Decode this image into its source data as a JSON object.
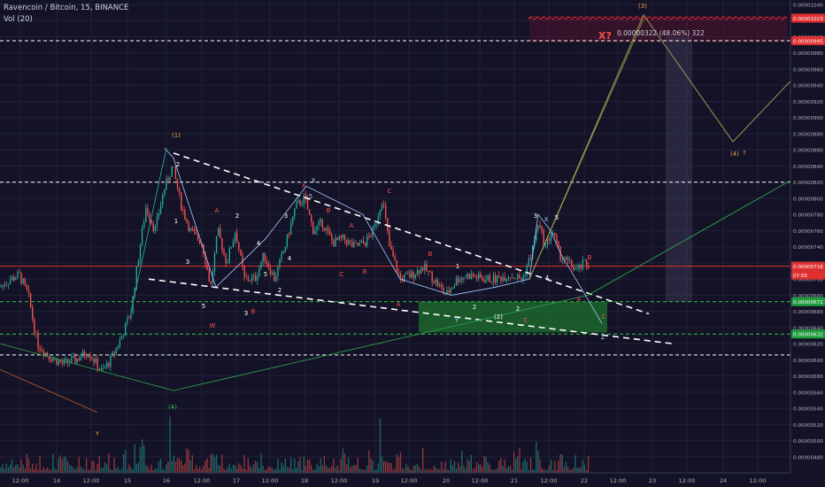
{
  "header": {
    "symbol_line": "Ravencoin / Bitcoin, 15, BINANCE",
    "volume_label": "Vol (20)"
  },
  "colors": {
    "background": "#131226",
    "grid": "#22213a",
    "candle_up": "#26a69a",
    "candle_down": "#ef5350",
    "price_line": "#e03030",
    "white_dashed": "#ffffff",
    "green_zone": "#1b6b2c",
    "red_zone": "#5a1330",
    "fib_line": "#9a9a52",
    "wave_orange": "#f0a050",
    "wave_red": "#ff5050",
    "wave_white": "#ffffff",
    "wave_blue": "#a8c8ff",
    "teal_line": "#26a69a",
    "green_line": "#2e9b4c",
    "brown_line": "#a0522d"
  },
  "chart_data": {
    "type": "candlestick",
    "x_axis_ticks": [
      "12:00",
      "14",
      "12:00",
      "15",
      "16",
      "12:00",
      "17",
      "12:00",
      "18",
      "12:00",
      "19",
      "12:00",
      "20",
      "12:00",
      "21",
      "12:00",
      "22",
      "12:00",
      "23",
      "12:00",
      "24",
      "12:00"
    ],
    "y_axis_ticks": [
      "0.00001040",
      "0.00001020",
      "0.00001000",
      "0.00000980",
      "0.00000960",
      "0.00000940",
      "0.00000920",
      "0.00000900",
      "0.00000880",
      "0.00000860",
      "0.00000840",
      "0.00000820",
      "0.00000800",
      "0.00000780",
      "0.00000760",
      "0.00000740",
      "0.00000720",
      "0.00000700",
      "0.00000680",
      "0.00000660",
      "0.00000640",
      "0.00000620",
      "0.00000600",
      "0.00000580",
      "0.00000560",
      "0.00000540",
      "0.00000520",
      "0.00000500",
      "0.00000480"
    ],
    "ylim": [
      4.7e-06,
      1.04e-05
    ],
    "price_badges": [
      {
        "value": "0.00001023",
        "color": "#e03030"
      },
      {
        "value": "0.00000995",
        "color": "#e03030"
      },
      {
        "value": "0.00000716",
        "color": "#e03030"
      },
      {
        "value": "07:55",
        "color": "#e03030"
      },
      {
        "value": "0.00000672",
        "color": "#1f9a3c"
      },
      {
        "value": "0.00000632",
        "color": "#1f9a3c"
      }
    ],
    "measure_label": "0.00000322 (48.06%) 322",
    "x_question_label": "X?",
    "wave_labels": [
      {
        "text": "(1)",
        "color": "#f0a050"
      },
      {
        "text": "2",
        "color": "#ffffff"
      },
      {
        "text": "(3)",
        "color": "#f0a050"
      },
      {
        "text": "(4)",
        "color": "#f0a050"
      },
      {
        "text": "?",
        "color": "#f0a050"
      },
      {
        "text": "(4)",
        "color": "#2ecc40"
      },
      {
        "text": "Y",
        "color": "#f0a050"
      },
      {
        "text": "A",
        "color": "#ff5050"
      },
      {
        "text": "2",
        "color": "#ffffff"
      },
      {
        "text": "4",
        "color": "#ffffff"
      },
      {
        "text": "1",
        "color": "#ffffff"
      },
      {
        "text": "3",
        "color": "#ffffff"
      },
      {
        "text": "5",
        "color": "#ffffff"
      },
      {
        "text": "W",
        "color": "#ff5050"
      },
      {
        "text": "3",
        "color": "#ffffff"
      },
      {
        "text": "5",
        "color": "#ffffff"
      },
      {
        "text": "B",
        "color": "#ff5050"
      },
      {
        "text": "2",
        "color": "#ffffff"
      },
      {
        "text": "4",
        "color": "#ffffff"
      },
      {
        "text": "3",
        "color": "#ffffff"
      },
      {
        "text": "X",
        "color": "#ff5050"
      },
      {
        "text": "X",
        "color": "#a8c8ff"
      },
      {
        "text": "5",
        "color": "#a8c8ff"
      },
      {
        "text": "B",
        "color": "#ff5050"
      },
      {
        "text": "A",
        "color": "#ff5050"
      },
      {
        "text": "C",
        "color": "#ff5050"
      },
      {
        "text": "B",
        "color": "#ff5050"
      },
      {
        "text": "C",
        "color": "#ff5050"
      },
      {
        "text": "A",
        "color": "#ff5050"
      },
      {
        "text": "B",
        "color": "#ff5050"
      },
      {
        "text": "1",
        "color": "#ffffff"
      },
      {
        "text": "2",
        "color": "#ffffff"
      },
      {
        "text": "Y",
        "color": "#a8c8ff"
      },
      {
        "text": "(2)",
        "color": "#ffffff"
      },
      {
        "text": "C",
        "color": "#ff5050"
      },
      {
        "text": "2",
        "color": "#ffffff"
      },
      {
        "text": "3",
        "color": "#ffffff"
      },
      {
        "text": "X",
        "color": "#a8c8ff"
      },
      {
        "text": "5",
        "color": "#ffffff"
      },
      {
        "text": "4",
        "color": "#ffffff"
      },
      {
        "text": "B",
        "color": "#ff5050"
      },
      {
        "text": "A",
        "color": "#ff5050"
      },
      {
        "text": "C",
        "color": "#ff5050"
      },
      {
        "text": "Z",
        "color": "#a8c8ff"
      }
    ]
  }
}
